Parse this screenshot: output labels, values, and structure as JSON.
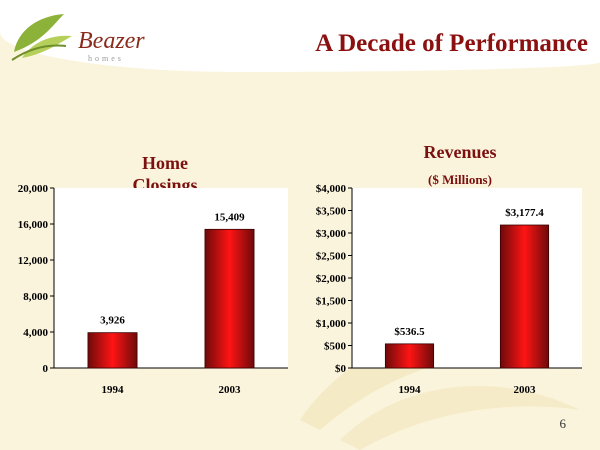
{
  "header": {
    "title": "A Decade of Performance",
    "logo_text": "Beazer",
    "logo_subtext": "homes"
  },
  "page_number": "6",
  "colors": {
    "title": "#8b1010",
    "bar_dark": "#6e0a0a",
    "bar_bright": "#ff1414",
    "background": "#fbf4dc"
  },
  "chart_data": [
    {
      "type": "bar",
      "title": "Home Closings",
      "categories": [
        "1994",
        "2003"
      ],
      "values": [
        3926,
        15409
      ],
      "data_labels": [
        "3,926",
        "15,409"
      ],
      "ylim": [
        0,
        20000
      ],
      "yticks": [
        0,
        4000,
        8000,
        12000,
        16000,
        20000
      ],
      "ytick_labels": [
        "0",
        "4,000",
        "8,000",
        "12,000",
        "16,000",
        "20,000"
      ],
      "grid": false,
      "legend": "none"
    },
    {
      "type": "bar",
      "title": "Revenues",
      "subtitle": "($ Millions)",
      "categories": [
        "1994",
        "2003"
      ],
      "values": [
        536.5,
        3177.4
      ],
      "data_labels": [
        "$536.5",
        "$3,177.4"
      ],
      "ylim": [
        0,
        4000
      ],
      "yticks": [
        0,
        500,
        1000,
        1500,
        2000,
        2500,
        3000,
        3500,
        4000
      ],
      "ytick_labels": [
        "$0",
        "$500",
        "$1,000",
        "$1,500",
        "$2,000",
        "$2,500",
        "$3,000",
        "$3,500",
        "$4,000"
      ],
      "grid": false,
      "legend": "none"
    }
  ]
}
